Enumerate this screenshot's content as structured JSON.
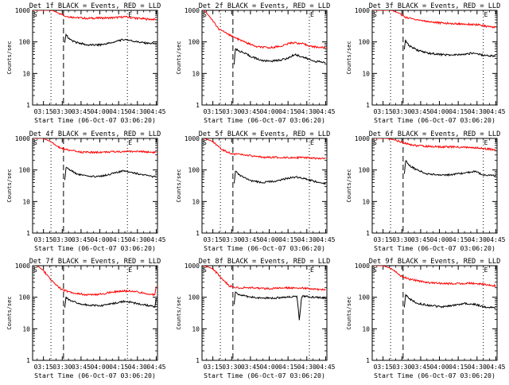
{
  "figure": {
    "background": "#ffffff",
    "axis_color": "#000000",
    "events_color": "#000000",
    "lld_color": "#ff0000"
  },
  "chart_data": [
    {
      "type": "line",
      "title": "Det 1f BLACK = Events, RED = LLD",
      "xlabel": "Start Time (06-Oct-07 03:06:20)",
      "ylabel": "Counts/sec",
      "x_tick_labels": [
        "03:15",
        "03:30",
        "03:45",
        "04:00",
        "04:15",
        "04:30",
        "04:45"
      ],
      "y_tick_labels": [
        "1",
        "10",
        "100",
        "1000"
      ],
      "y_scale": "log",
      "ylim": [
        1,
        1000
      ],
      "xlim": [
        "03:06:20",
        "04:46:00"
      ],
      "marker_labels": [
        "S",
        "E"
      ],
      "vlines": [
        {
          "time": "03:21",
          "style": "dotted"
        },
        {
          "time": "03:31",
          "style": "dashed"
        },
        {
          "time": "04:22",
          "style": "dotted"
        }
      ],
      "series": [
        {
          "name": "LLD",
          "color": "#ff0000",
          "x": [
            "03:07",
            "03:15",
            "03:22",
            "03:28",
            "03:33",
            "03:40",
            "03:50",
            "04:00",
            "04:10",
            "04:20",
            "04:30",
            "04:40",
            "04:45"
          ],
          "y": [
            1000,
            1000,
            1000,
            780,
            650,
            590,
            560,
            570,
            580,
            620,
            560,
            520,
            520
          ]
        },
        {
          "name": "Events",
          "color": "#000000",
          "x": [
            "03:32",
            "03:33",
            "03:36",
            "03:40",
            "03:50",
            "04:00",
            "04:10",
            "04:15",
            "04:20",
            "04:30",
            "04:38",
            "04:45"
          ],
          "y": [
            90,
            170,
            120,
            100,
            80,
            80,
            95,
            110,
            120,
            100,
            90,
            88
          ]
        }
      ]
    },
    {
      "type": "line",
      "title": "Det 2f BLACK = Events, RED = LLD",
      "xlabel": "Start Time (06-Oct-07 03:06:20)",
      "ylabel": "Counts/sec",
      "x_tick_labels": [
        "03:15",
        "03:30",
        "03:45",
        "04:00",
        "04:15",
        "04:30",
        "04:45"
      ],
      "y_tick_labels": [
        "1",
        "10",
        "100",
        "1000"
      ],
      "y_scale": "log",
      "ylim": [
        1,
        1000
      ],
      "xlim": [
        "03:06:20",
        "04:46:00"
      ],
      "marker_labels": [
        "S",
        "E"
      ],
      "vlines": [
        {
          "time": "03:21",
          "style": "dotted"
        },
        {
          "time": "03:31",
          "style": "dashed"
        },
        {
          "time": "04:32",
          "style": "dotted"
        }
      ],
      "series": [
        {
          "name": "LLD",
          "color": "#ff0000",
          "x": [
            "03:08",
            "03:13",
            "03:20",
            "03:25",
            "03:30",
            "03:40",
            "03:50",
            "04:00",
            "04:10",
            "04:18",
            "04:25",
            "04:35",
            "04:45"
          ],
          "y": [
            1000,
            600,
            250,
            200,
            150,
            100,
            70,
            65,
            75,
            95,
            90,
            70,
            65
          ]
        },
        {
          "name": "Events",
          "color": "#000000",
          "x": [
            "03:32",
            "03:33",
            "03:37",
            "03:45",
            "03:55",
            "04:05",
            "04:15",
            "04:20",
            "04:25",
            "04:35",
            "04:45"
          ],
          "y": [
            20,
            60,
            50,
            35,
            25,
            25,
            30,
            40,
            35,
            25,
            22
          ]
        }
      ]
    },
    {
      "type": "line",
      "title": "Det 3f BLACK = Events, RED = LLD",
      "xlabel": "Start Time (06-Oct-07 03:06:20)",
      "ylabel": "Counts/sec",
      "x_tick_labels": [
        "03:15",
        "03:30",
        "03:45",
        "04:00",
        "04:15",
        "04:30",
        "04:45"
      ],
      "y_tick_labels": [
        "1",
        "10",
        "100",
        "1000"
      ],
      "y_scale": "log",
      "ylim": [
        1,
        1000
      ],
      "xlim": [
        "03:06:20",
        "04:46:00"
      ],
      "marker_labels": [
        "S",
        "E"
      ],
      "vlines": [
        {
          "time": "03:21",
          "style": "dotted"
        },
        {
          "time": "03:31",
          "style": "dashed"
        },
        {
          "time": "04:35",
          "style": "dotted"
        }
      ],
      "series": [
        {
          "name": "LLD",
          "color": "#ff0000",
          "x": [
            "03:08",
            "03:15",
            "03:22",
            "03:28",
            "03:33",
            "03:40",
            "03:50",
            "04:00",
            "04:10",
            "04:20",
            "04:30",
            "04:40",
            "04:45"
          ],
          "y": [
            1000,
            1000,
            1000,
            800,
            600,
            520,
            450,
            400,
            380,
            370,
            350,
            300,
            290
          ]
        },
        {
          "name": "Events",
          "color": "#000000",
          "x": [
            "03:32",
            "03:33",
            "03:36",
            "03:42",
            "03:50",
            "04:00",
            "04:10",
            "04:20",
            "04:27",
            "04:35",
            "04:45"
          ],
          "y": [
            60,
            110,
            75,
            55,
            45,
            40,
            38,
            40,
            45,
            38,
            35
          ]
        }
      ]
    },
    {
      "type": "line",
      "title": "Det 4f BLACK = Events, RED = LLD",
      "xlabel": "Start Time (06-Oct-07 03:06:20)",
      "ylabel": "Counts/sec",
      "x_tick_labels": [
        "03:15",
        "03:30",
        "03:45",
        "04:00",
        "04:15",
        "04:30",
        "04:45"
      ],
      "y_tick_labels": [
        "1",
        "10",
        "100",
        "1000"
      ],
      "y_scale": "log",
      "ylim": [
        1,
        1000
      ],
      "xlim": [
        "03:06:20",
        "04:46:00"
      ],
      "marker_labels": [
        "S",
        "E"
      ],
      "vlines": [
        {
          "time": "03:21",
          "style": "dotted"
        },
        {
          "time": "03:31",
          "style": "dashed"
        },
        {
          "time": "04:22",
          "style": "dotted"
        }
      ],
      "series": [
        {
          "name": "LLD",
          "color": "#ff0000",
          "x": [
            "03:07",
            "03:15",
            "03:22",
            "03:28",
            "03:35",
            "03:45",
            "03:55",
            "04:05",
            "04:15",
            "04:25",
            "04:35",
            "04:45"
          ],
          "y": [
            1000,
            1000,
            750,
            500,
            420,
            370,
            360,
            370,
            380,
            390,
            380,
            360
          ]
        },
        {
          "name": "Events",
          "color": "#000000",
          "x": [
            "03:32",
            "03:33",
            "03:36",
            "03:42",
            "03:52",
            "04:02",
            "04:12",
            "04:20",
            "04:28",
            "04:38",
            "04:45"
          ],
          "y": [
            45,
            120,
            100,
            75,
            60,
            65,
            80,
            95,
            80,
            65,
            60
          ]
        }
      ]
    },
    {
      "type": "line",
      "title": "Det 5f BLACK = Events, RED = LLD",
      "xlabel": "Start Time (06-Oct-07 03:06:20)",
      "ylabel": "Counts/sec",
      "x_tick_labels": [
        "03:15",
        "03:30",
        "03:45",
        "04:00",
        "04:15",
        "04:30",
        "04:45"
      ],
      "y_tick_labels": [
        "1",
        "10",
        "100",
        "1000"
      ],
      "y_scale": "log",
      "ylim": [
        1,
        1000
      ],
      "xlim": [
        "03:06:20",
        "04:46:00"
      ],
      "marker_labels": [
        "S",
        "E"
      ],
      "vlines": [
        {
          "time": "03:21",
          "style": "dotted"
        },
        {
          "time": "03:31",
          "style": "dashed"
        },
        {
          "time": "04:32",
          "style": "dotted"
        }
      ],
      "series": [
        {
          "name": "LLD",
          "color": "#ff0000",
          "x": [
            "03:08",
            "03:15",
            "03:22",
            "03:30",
            "03:40",
            "03:50",
            "04:00",
            "04:10",
            "04:20",
            "04:30",
            "04:40",
            "04:45"
          ],
          "y": [
            1000,
            800,
            450,
            330,
            300,
            260,
            250,
            250,
            250,
            240,
            230,
            230
          ]
        },
        {
          "name": "Events",
          "color": "#000000",
          "x": [
            "03:32",
            "03:33",
            "03:36",
            "03:45",
            "03:55",
            "04:05",
            "04:15",
            "04:22",
            "04:30",
            "04:40",
            "04:45"
          ],
          "y": [
            40,
            90,
            70,
            45,
            40,
            45,
            55,
            60,
            50,
            40,
            38
          ]
        }
      ]
    },
    {
      "type": "line",
      "title": "Det 6f BLACK = Events, RED = LLD",
      "xlabel": "Start Time (06-Oct-07 03:06:20)",
      "ylabel": "Counts/sec",
      "x_tick_labels": [
        "03:15",
        "03:30",
        "03:45",
        "04:00",
        "04:15",
        "04:30",
        "04:45"
      ],
      "y_tick_labels": [
        "1",
        "10",
        "100",
        "1000"
      ],
      "y_scale": "log",
      "ylim": [
        1,
        1000
      ],
      "xlim": [
        "03:06:20",
        "04:46:00"
      ],
      "marker_labels": [
        "S",
        "E"
      ],
      "vlines": [
        {
          "time": "03:21",
          "style": "dotted"
        },
        {
          "time": "03:31",
          "style": "dashed"
        },
        {
          "time": "04:35",
          "style": "dotted"
        }
      ],
      "series": [
        {
          "name": "LLD",
          "color": "#ff0000",
          "x": [
            "03:08",
            "03:18",
            "03:25",
            "03:32",
            "03:40",
            "03:50",
            "04:00",
            "04:10",
            "04:20",
            "04:30",
            "04:40",
            "04:45"
          ],
          "y": [
            1000,
            1000,
            880,
            720,
            600,
            560,
            540,
            540,
            520,
            500,
            460,
            430
          ]
        },
        {
          "name": "Events",
          "color": "#000000",
          "x": [
            "03:32",
            "03:33",
            "03:36",
            "03:42",
            "03:50",
            "04:00",
            "04:10",
            "04:20",
            "04:28",
            "04:35",
            "04:45"
          ],
          "y": [
            80,
            200,
            140,
            100,
            75,
            70,
            70,
            80,
            90,
            70,
            65
          ]
        }
      ]
    },
    {
      "type": "line",
      "title": "Det 7f BLACK = Events, RED = LLD",
      "xlabel": "Start Time (06-Oct-07 03:06:20)",
      "ylabel": "Counts/sec",
      "x_tick_labels": [
        "03:15",
        "03:30",
        "03:45",
        "04:00",
        "04:15",
        "04:30",
        "04:45"
      ],
      "y_tick_labels": [
        "1",
        "10",
        "100",
        "1000"
      ],
      "y_scale": "log",
      "ylim": [
        1,
        1000
      ],
      "xlim": [
        "03:06:20",
        "04:46:00"
      ],
      "marker_labels": [
        "S",
        "E"
      ],
      "vlines": [
        {
          "time": "03:21",
          "style": "dotted"
        },
        {
          "time": "03:31",
          "style": "dashed"
        },
        {
          "time": "04:22",
          "style": "dotted"
        }
      ],
      "series": [
        {
          "name": "LLD",
          "color": "#ff0000",
          "x": [
            "03:10",
            "03:15",
            "03:20",
            "03:25",
            "03:30",
            "03:38",
            "03:48",
            "03:58",
            "04:08",
            "04:18",
            "04:28",
            "04:38",
            "04:44",
            "04:45"
          ],
          "y": [
            1000,
            700,
            400,
            250,
            170,
            140,
            120,
            120,
            140,
            160,
            150,
            130,
            120,
            220
          ]
        },
        {
          "name": "Events",
          "color": "#000000",
          "x": [
            "03:32",
            "03:33",
            "03:36",
            "03:42",
            "03:52",
            "04:02",
            "04:12",
            "04:20",
            "04:28",
            "04:38",
            "04:44",
            "04:45"
          ],
          "y": [
            50,
            100,
            80,
            65,
            55,
            55,
            65,
            75,
            65,
            55,
            50,
            90
          ]
        }
      ]
    },
    {
      "type": "line",
      "title": "Det 8f BLACK = Events, RED = LLD",
      "xlabel": "Start Time (06-Oct-07 03:06:20)",
      "ylabel": "Counts/sec",
      "x_tick_labels": [
        "03:15",
        "03:30",
        "03:45",
        "04:00",
        "04:15",
        "04:30",
        "04:45"
      ],
      "y_tick_labels": [
        "1",
        "10",
        "100",
        "1000"
      ],
      "y_scale": "log",
      "ylim": [
        1,
        1000
      ],
      "xlim": [
        "03:06:20",
        "04:46:00"
      ],
      "marker_labels": [
        "S",
        "E"
      ],
      "vlines": [
        {
          "time": "03:21",
          "style": "dotted"
        },
        {
          "time": "03:31",
          "style": "dashed"
        },
        {
          "time": "04:32",
          "style": "dotted"
        }
      ],
      "series": [
        {
          "name": "LLD",
          "color": "#ff0000",
          "x": [
            "03:08",
            "03:15",
            "03:22",
            "03:28",
            "03:35",
            "03:45",
            "03:55",
            "04:05",
            "04:15",
            "04:25",
            "04:35",
            "04:45"
          ],
          "y": [
            1000,
            800,
            400,
            230,
            200,
            200,
            190,
            190,
            200,
            200,
            180,
            170
          ]
        },
        {
          "name": "Events",
          "color": "#000000",
          "x": [
            "03:32",
            "03:33",
            "03:36",
            "03:45",
            "03:55",
            "04:05",
            "04:15",
            "04:22",
            "04:24",
            "04:26",
            "04:35",
            "04:45"
          ],
          "y": [
            60,
            150,
            120,
            100,
            95,
            95,
            100,
            110,
            20,
            110,
            100,
            95
          ]
        }
      ]
    },
    {
      "type": "line",
      "title": "Det 9f BLACK = Events, RED = LLD",
      "xlabel": "Start Time (06-Oct-07 03:06:20)",
      "ylabel": "Counts/sec",
      "x_tick_labels": [
        "03:15",
        "03:30",
        "03:45",
        "04:00",
        "04:15",
        "04:30",
        "04:45"
      ],
      "y_tick_labels": [
        "1",
        "10",
        "100",
        "1000"
      ],
      "y_scale": "log",
      "ylim": [
        1,
        1000
      ],
      "xlim": [
        "03:06:20",
        "04:46:00"
      ],
      "marker_labels": [
        "S",
        "E"
      ],
      "vlines": [
        {
          "time": "03:21",
          "style": "dotted"
        },
        {
          "time": "03:31",
          "style": "dashed"
        },
        {
          "time": "04:35",
          "style": "dotted"
        }
      ],
      "series": [
        {
          "name": "LLD",
          "color": "#ff0000",
          "x": [
            "03:08",
            "03:15",
            "03:22",
            "03:28",
            "03:35",
            "03:45",
            "03:55",
            "04:05",
            "04:15",
            "04:25",
            "04:35",
            "04:45"
          ],
          "y": [
            1000,
            1000,
            800,
            500,
            380,
            320,
            280,
            270,
            270,
            280,
            260,
            230
          ]
        },
        {
          "name": "Events",
          "color": "#000000",
          "x": [
            "03:32",
            "03:33",
            "03:36",
            "03:42",
            "03:52",
            "04:02",
            "04:12",
            "04:20",
            "04:28",
            "04:35",
            "04:45"
          ],
          "y": [
            50,
            120,
            90,
            65,
            55,
            50,
            55,
            65,
            60,
            50,
            45
          ]
        }
      ]
    }
  ]
}
